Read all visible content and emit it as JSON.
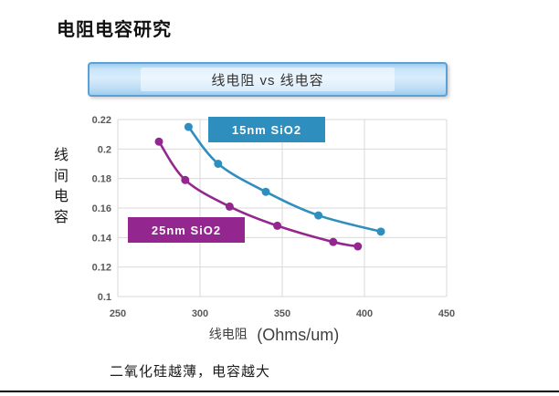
{
  "slide": {
    "title": "电阻电容研究",
    "banner": "线电阻 vs 线电容",
    "note": "二氧化硅越薄，电容越大"
  },
  "colors": {
    "banner_border": "#5ca0d6",
    "banner_fill_light": "#d9edfc",
    "banner_fill_dark": "#9fcdef",
    "grid": "#d9d9d9",
    "tick_text": "#595959",
    "series_teal": "#2e8fbe",
    "series_purple": "#93278f"
  },
  "chart_data": {
    "type": "scatter",
    "title": "",
    "grid": true,
    "legend_position": "inline-boxes",
    "x_axis": {
      "label_zh": "线电阻",
      "unit": "(Ohms/um)",
      "min": 250,
      "max": 450,
      "tick_labels": [
        "250",
        "300",
        "350",
        "400",
        "450"
      ],
      "tick_values": [
        250,
        300,
        350,
        400,
        450
      ]
    },
    "y_axis": {
      "label": "线间电容",
      "min": 0.1,
      "max": 0.22,
      "tick_labels": [
        "0.22",
        "0.2",
        "0.18",
        "0.16",
        "0.14",
        "0.12",
        "0.1"
      ],
      "tick_values": [
        0.22,
        0.2,
        0.18,
        0.16,
        0.14,
        0.12,
        0.1
      ]
    },
    "series": [
      {
        "name": "15nm SiO2",
        "color": "#2e8fbe",
        "points": [
          [
            293,
            0.215
          ],
          [
            311,
            0.19
          ],
          [
            340,
            0.171
          ],
          [
            372,
            0.155
          ],
          [
            410,
            0.144
          ]
        ]
      },
      {
        "name": "25nm SiO2",
        "color": "#93278f",
        "points": [
          [
            275,
            0.205
          ],
          [
            291,
            0.179
          ],
          [
            318,
            0.161
          ],
          [
            347,
            0.148
          ],
          [
            381,
            0.137
          ],
          [
            396,
            0.134
          ]
        ]
      }
    ]
  }
}
